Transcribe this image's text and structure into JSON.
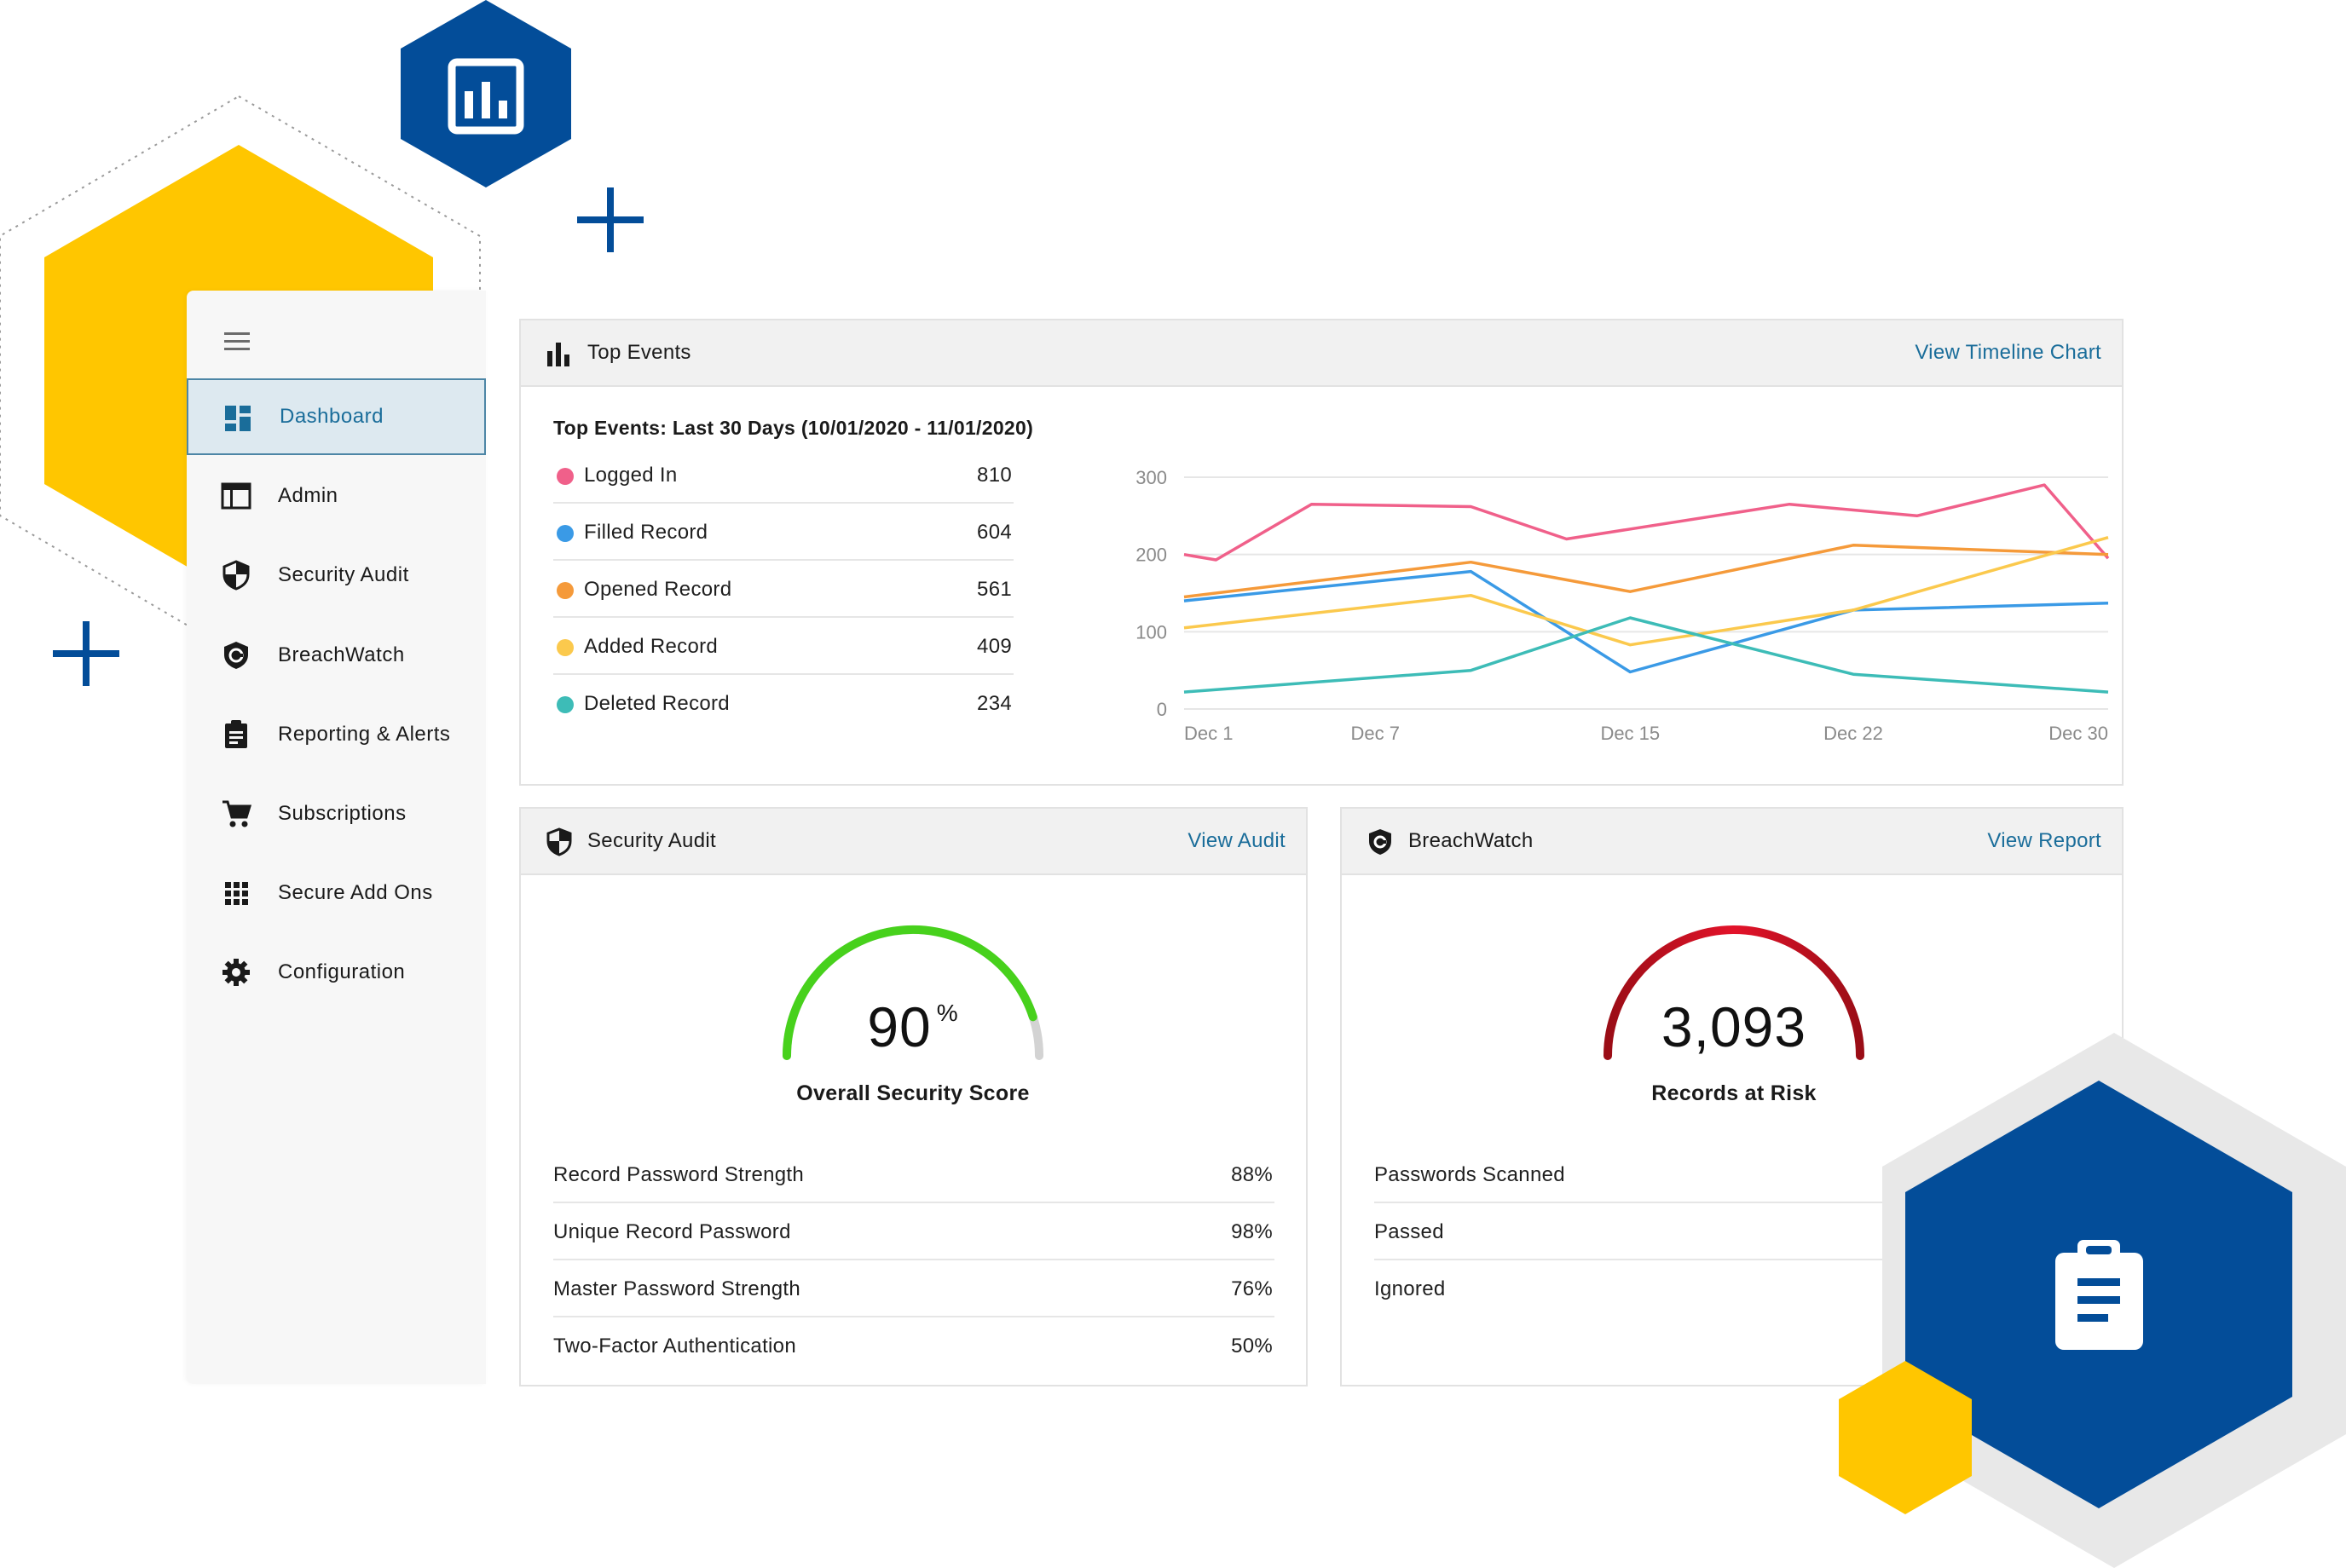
{
  "colors": {
    "brand_blue": "#034d99",
    "brand_yellow": "#ffc600",
    "link": "#1a6d9a",
    "score_good": "#47d11c",
    "risk_red": "#c8101e"
  },
  "sidebar": {
    "menu_icon": "hamburger-icon",
    "items": [
      {
        "label": "Dashboard",
        "icon": "dashboard-icon",
        "active": true
      },
      {
        "label": "Admin",
        "icon": "admin-window-icon"
      },
      {
        "label": "Security Audit",
        "icon": "shield-icon"
      },
      {
        "label": "BreachWatch",
        "icon": "breachwatch-shield-icon"
      },
      {
        "label": "Reporting & Alerts",
        "icon": "clipboard-icon"
      },
      {
        "label": "Subscriptions",
        "icon": "cart-icon"
      },
      {
        "label": "Secure Add Ons",
        "icon": "grid-icon"
      },
      {
        "label": "Configuration",
        "icon": "gear-icon"
      }
    ]
  },
  "top_events": {
    "title": "Top Events",
    "link": "View Timeline Chart",
    "subtitle": "Top Events: Last 30 Days (10/01/2020 - 11/01/2020)",
    "rows": [
      {
        "name": "Logged In",
        "value": "810",
        "color": "#f0608a"
      },
      {
        "name": "Filled Record",
        "value": "604",
        "color": "#3a9ae6"
      },
      {
        "name": "Opened Record",
        "value": "561",
        "color": "#f59a3a"
      },
      {
        "name": "Added Record",
        "value": "409",
        "color": "#fbc94d"
      },
      {
        "name": "Deleted Record",
        "value": "234",
        "color": "#3dbcb7"
      }
    ]
  },
  "chart_data": {
    "type": "line",
    "x": [
      "Dec 1",
      "Dec 3",
      "Dec 7",
      "Dec 11",
      "Dec 15",
      "Dec 18",
      "Dec 22",
      "Dec 26",
      "Dec 28",
      "Dec 30"
    ],
    "xticks": [
      "Dec 1",
      "Dec 7",
      "Dec 15",
      "Dec 22",
      "Dec 30"
    ],
    "yticks": [
      "0",
      "100",
      "200",
      "300"
    ],
    "ylim": [
      0,
      300
    ],
    "grid": true,
    "series": [
      {
        "name": "Logged In",
        "color": "#f0608a",
        "points": [
          [
            "Dec 1",
            200
          ],
          [
            "Dec 2",
            193
          ],
          [
            "Dec 5",
            265
          ],
          [
            "Dec 10",
            262
          ],
          [
            "Dec 13",
            220
          ],
          [
            "Dec 20",
            265
          ],
          [
            "Dec 24",
            250
          ],
          [
            "Dec 28",
            290
          ],
          [
            "Dec 30",
            195
          ]
        ]
      },
      {
        "name": "Filled Record",
        "color": "#3a9ae6",
        "points": [
          [
            "Dec 1",
            140
          ],
          [
            "Dec 10",
            178
          ],
          [
            "Dec 15",
            48
          ],
          [
            "Dec 22",
            128
          ],
          [
            "Dec 30",
            137
          ]
        ]
      },
      {
        "name": "Opened Record",
        "color": "#f59a3a",
        "points": [
          [
            "Dec 1",
            145
          ],
          [
            "Dec 10",
            190
          ],
          [
            "Dec 15",
            152
          ],
          [
            "Dec 22",
            212
          ],
          [
            "Dec 30",
            200
          ]
        ]
      },
      {
        "name": "Added Record",
        "color": "#fbc94d",
        "points": [
          [
            "Dec 1",
            105
          ],
          [
            "Dec 10",
            147
          ],
          [
            "Dec 15",
            83
          ],
          [
            "Dec 22",
            128
          ],
          [
            "Dec 30",
            222
          ]
        ]
      },
      {
        "name": "Deleted Record",
        "color": "#3dbcb7",
        "points": [
          [
            "Dec 1",
            22
          ],
          [
            "Dec 10",
            50
          ],
          [
            "Dec 15",
            118
          ],
          [
            "Dec 22",
            45
          ],
          [
            "Dec 30",
            22
          ]
        ]
      }
    ]
  },
  "security_audit": {
    "title": "Security Audit",
    "link": "View Audit",
    "score": "90",
    "score_unit": "%",
    "score_fraction": 0.9,
    "score_label": "Overall Security Score",
    "rows": [
      {
        "name": "Record Password Strength",
        "value": "88%"
      },
      {
        "name": "Unique Record Password",
        "value": "98%"
      },
      {
        "name": "Master Password Strength",
        "value": "76%"
      },
      {
        "name": "Two-Factor Authentication",
        "value": "50%"
      }
    ]
  },
  "breachwatch": {
    "title": "BreachWatch",
    "link": "View Report",
    "value": "3,093",
    "label": "Records at Risk",
    "rows": [
      {
        "name": "Passwords Scanned"
      },
      {
        "name": "Passed"
      },
      {
        "name": "Ignored"
      }
    ]
  },
  "decorations": {
    "top_hex_icon": "bar-chart-icon",
    "bottom_hex_icon": "clipboard-list-icon",
    "plus_icon": "plus-icon"
  }
}
